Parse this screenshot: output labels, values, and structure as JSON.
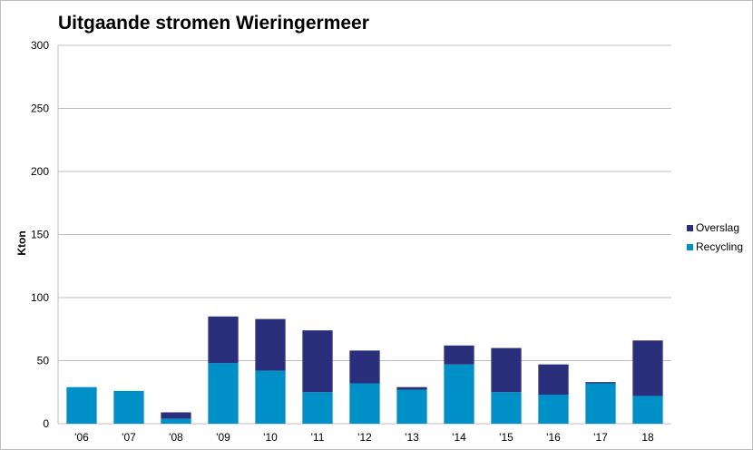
{
  "chart_data": {
    "type": "bar",
    "stacked": true,
    "title": "Uitgaande stromen Wieringermeer",
    "xlabel": "",
    "ylabel": "Kton",
    "ylim": [
      0,
      300
    ],
    "yticks": [
      0,
      50,
      100,
      150,
      200,
      250,
      300
    ],
    "grid": true,
    "legend_position": "right",
    "categories": [
      "'06",
      "'07",
      "'08",
      "'09",
      "'10",
      "'11",
      "'12",
      "'13",
      "'14",
      "'15",
      "'16",
      "'17",
      "18"
    ],
    "series": [
      {
        "name": "Recycling",
        "color": "#0090c8",
        "values": [
          29,
          26,
          4,
          48,
          42,
          25,
          32,
          27,
          47,
          25,
          23,
          32,
          22
        ]
      },
      {
        "name": "Overslag",
        "color": "#2a2f7c",
        "values": [
          0,
          0,
          5,
          37,
          41,
          49,
          26,
          2,
          15,
          35,
          24,
          1,
          44
        ]
      }
    ],
    "legend_order": [
      "Overslag",
      "Recycling"
    ]
  }
}
